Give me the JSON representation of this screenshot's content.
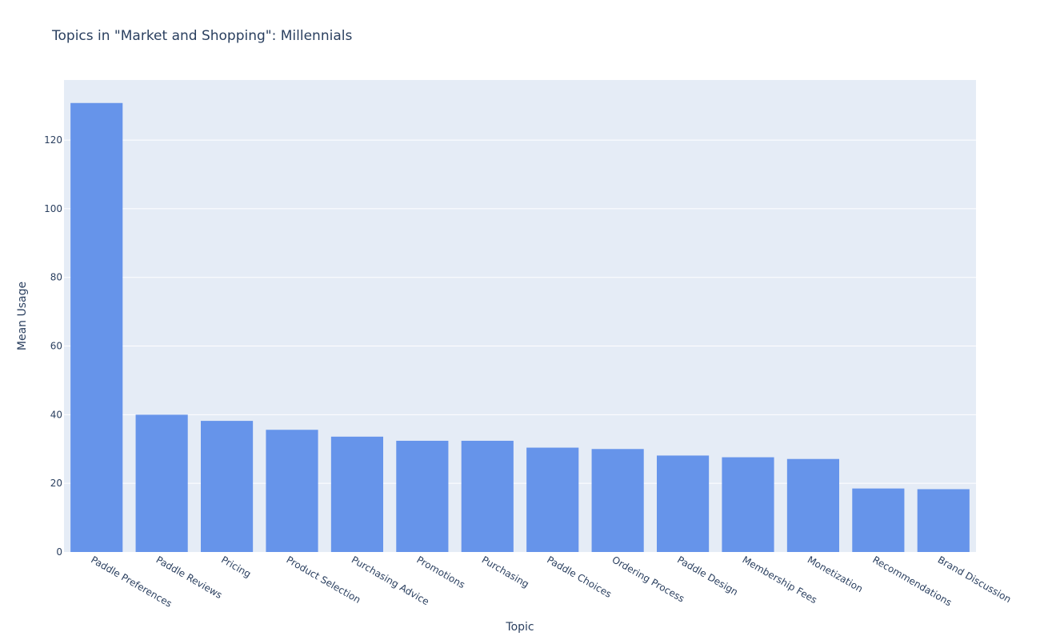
{
  "chart_data": {
    "type": "bar",
    "title": "Topics in \"Market and Shopping\": Millennials",
    "xlabel": "Topic",
    "ylabel": "Mean Usage",
    "categories": [
      "Paddle Preferences",
      "Paddle Reviews",
      "Pricing",
      "Product Selection",
      "Purchasing Advice",
      "Promotions",
      "Purchasing",
      "Paddle Choices",
      "Ordering Process",
      "Paddle Design",
      "Membership Fees",
      "Monetization",
      "Recommendations",
      "Brand Discussion"
    ],
    "values": [
      130.8,
      40.0,
      38.2,
      35.6,
      33.6,
      32.4,
      32.4,
      30.4,
      30.0,
      28.1,
      27.6,
      27.1,
      18.5,
      18.3
    ],
    "ylim": [
      0,
      137.5
    ],
    "yticks": [
      0,
      20,
      40,
      60,
      80,
      100,
      120
    ],
    "grid": true,
    "bar_color": "#6694ea",
    "plot_bg": "#e5ecf6"
  }
}
